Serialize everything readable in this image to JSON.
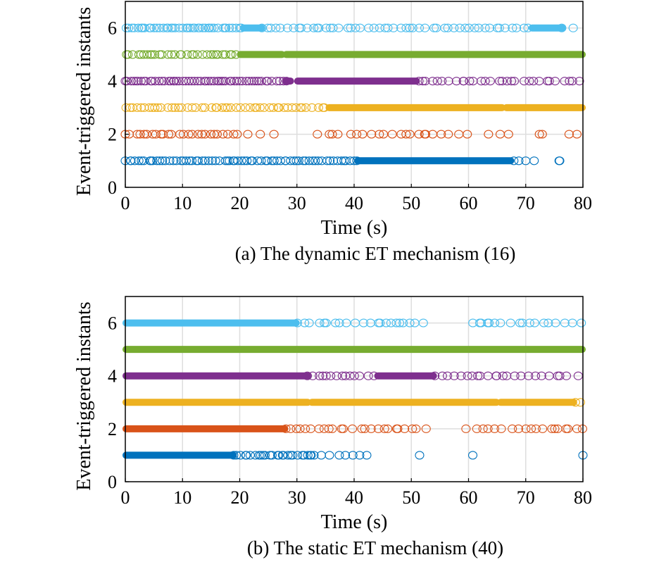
{
  "chart_data": [
    {
      "type": "scatter",
      "caption": "(a) The dynamic ET mechanism (16)",
      "xlabel": "Time (s)",
      "ylabel": "Event-triggered instants",
      "xlim": [
        0,
        80
      ],
      "ylim": [
        0,
        7
      ],
      "xticks": [
        0,
        10,
        20,
        30,
        40,
        50,
        60,
        70,
        80
      ],
      "yticks": [
        0,
        2,
        4,
        6
      ],
      "grid": true,
      "legend": "none",
      "marker": "open-circle",
      "series": [
        {
          "y": 1,
          "color": "#0072BD",
          "dense": [
            [
              40.5,
              67.5
            ]
          ],
          "sparse": [
            [
              0,
              40.5,
              0.6
            ],
            [
              67.5,
              73,
              1.3
            ],
            [
              75,
              77,
              3.0
            ]
          ]
        },
        {
          "y": 2,
          "color": "#D95319",
          "dense": [],
          "sparse": [
            [
              0,
              20,
              0.8
            ],
            [
              20,
              32,
              4.5
            ],
            [
              34,
              60,
              1.2
            ],
            [
              60,
              69,
              2.5
            ],
            [
              72,
              80,
              3.5
            ]
          ]
        },
        {
          "y": 3,
          "color": "#EDB120",
          "dense": [
            [
              35.5,
              66
            ],
            [
              66.5,
              80
            ]
          ],
          "sparse": [
            [
              0,
              35.5,
              0.7
            ]
          ]
        },
        {
          "y": 4,
          "color": "#7E2F8E",
          "dense": [
            [
              28,
              29
            ],
            [
              30,
              51
            ]
          ],
          "sparse": [
            [
              0,
              28,
              0.5
            ],
            [
              51,
              80,
              0.9
            ]
          ]
        },
        {
          "y": 5,
          "color": "#77AC30",
          "dense": [
            [
              20,
              27.5
            ],
            [
              28,
              80
            ]
          ],
          "sparse": [
            [
              0,
              20,
              0.6
            ]
          ]
        },
        {
          "y": 6,
          "color": "#4DBEEE",
          "dense": [
            [
              20.5,
              24
            ],
            [
              71,
              76.5
            ]
          ],
          "sparse": [
            [
              0,
              20.5,
              0.5
            ],
            [
              24,
              71,
              0.9
            ],
            [
              76.5,
              80,
              1.5
            ]
          ]
        }
      ]
    },
    {
      "type": "scatter",
      "caption": "(b) The static ET mechanism (40)",
      "xlabel": "Time (s)",
      "ylabel": "Event-triggered instants",
      "xlim": [
        0,
        80
      ],
      "ylim": [
        0,
        7
      ],
      "xticks": [
        0,
        10,
        20,
        30,
        40,
        50,
        60,
        70,
        80
      ],
      "yticks": [
        0,
        2,
        4,
        6
      ],
      "grid": true,
      "legend": "none",
      "marker": "open-circle",
      "series": [
        {
          "y": 1,
          "color": "#0072BD",
          "dense": [
            [
              0,
              19
            ]
          ],
          "sparse": [
            [
              19,
              33,
              0.6
            ],
            [
              33,
              43,
              1.3
            ],
            [
              51,
              52,
              1.5
            ],
            [
              60.5,
              61.5,
              1.5
            ],
            [
              80,
              81,
              2.0
            ]
          ]
        },
        {
          "y": 2,
          "color": "#D95319",
          "dense": [
            [
              0,
              28
            ]
          ],
          "sparse": [
            [
              28,
              53,
              1.0
            ],
            [
              60,
              80,
              1.2
            ]
          ]
        },
        {
          "y": 3,
          "color": "#EDB120",
          "dense": [
            [
              0,
              32
            ],
            [
              32.5,
              65
            ],
            [
              65.5,
              78.5
            ]
          ],
          "sparse": [
            [
              78.5,
              80,
              1.0
            ]
          ]
        },
        {
          "y": 4,
          "color": "#7E2F8E",
          "dense": [
            [
              0,
              32
            ],
            [
              44,
              54
            ]
          ],
          "sparse": [
            [
              32,
              44,
              1.0
            ],
            [
              54,
              80,
              1.0
            ]
          ]
        },
        {
          "y": 5,
          "color": "#77AC30",
          "dense": [
            [
              0,
              80
            ]
          ],
          "sparse": []
        },
        {
          "y": 6,
          "color": "#4DBEEE",
          "dense": [
            [
              0,
              30
            ]
          ],
          "sparse": [
            [
              30,
              53,
              1.0
            ],
            [
              61,
              80,
              1.1
            ]
          ]
        }
      ]
    }
  ]
}
